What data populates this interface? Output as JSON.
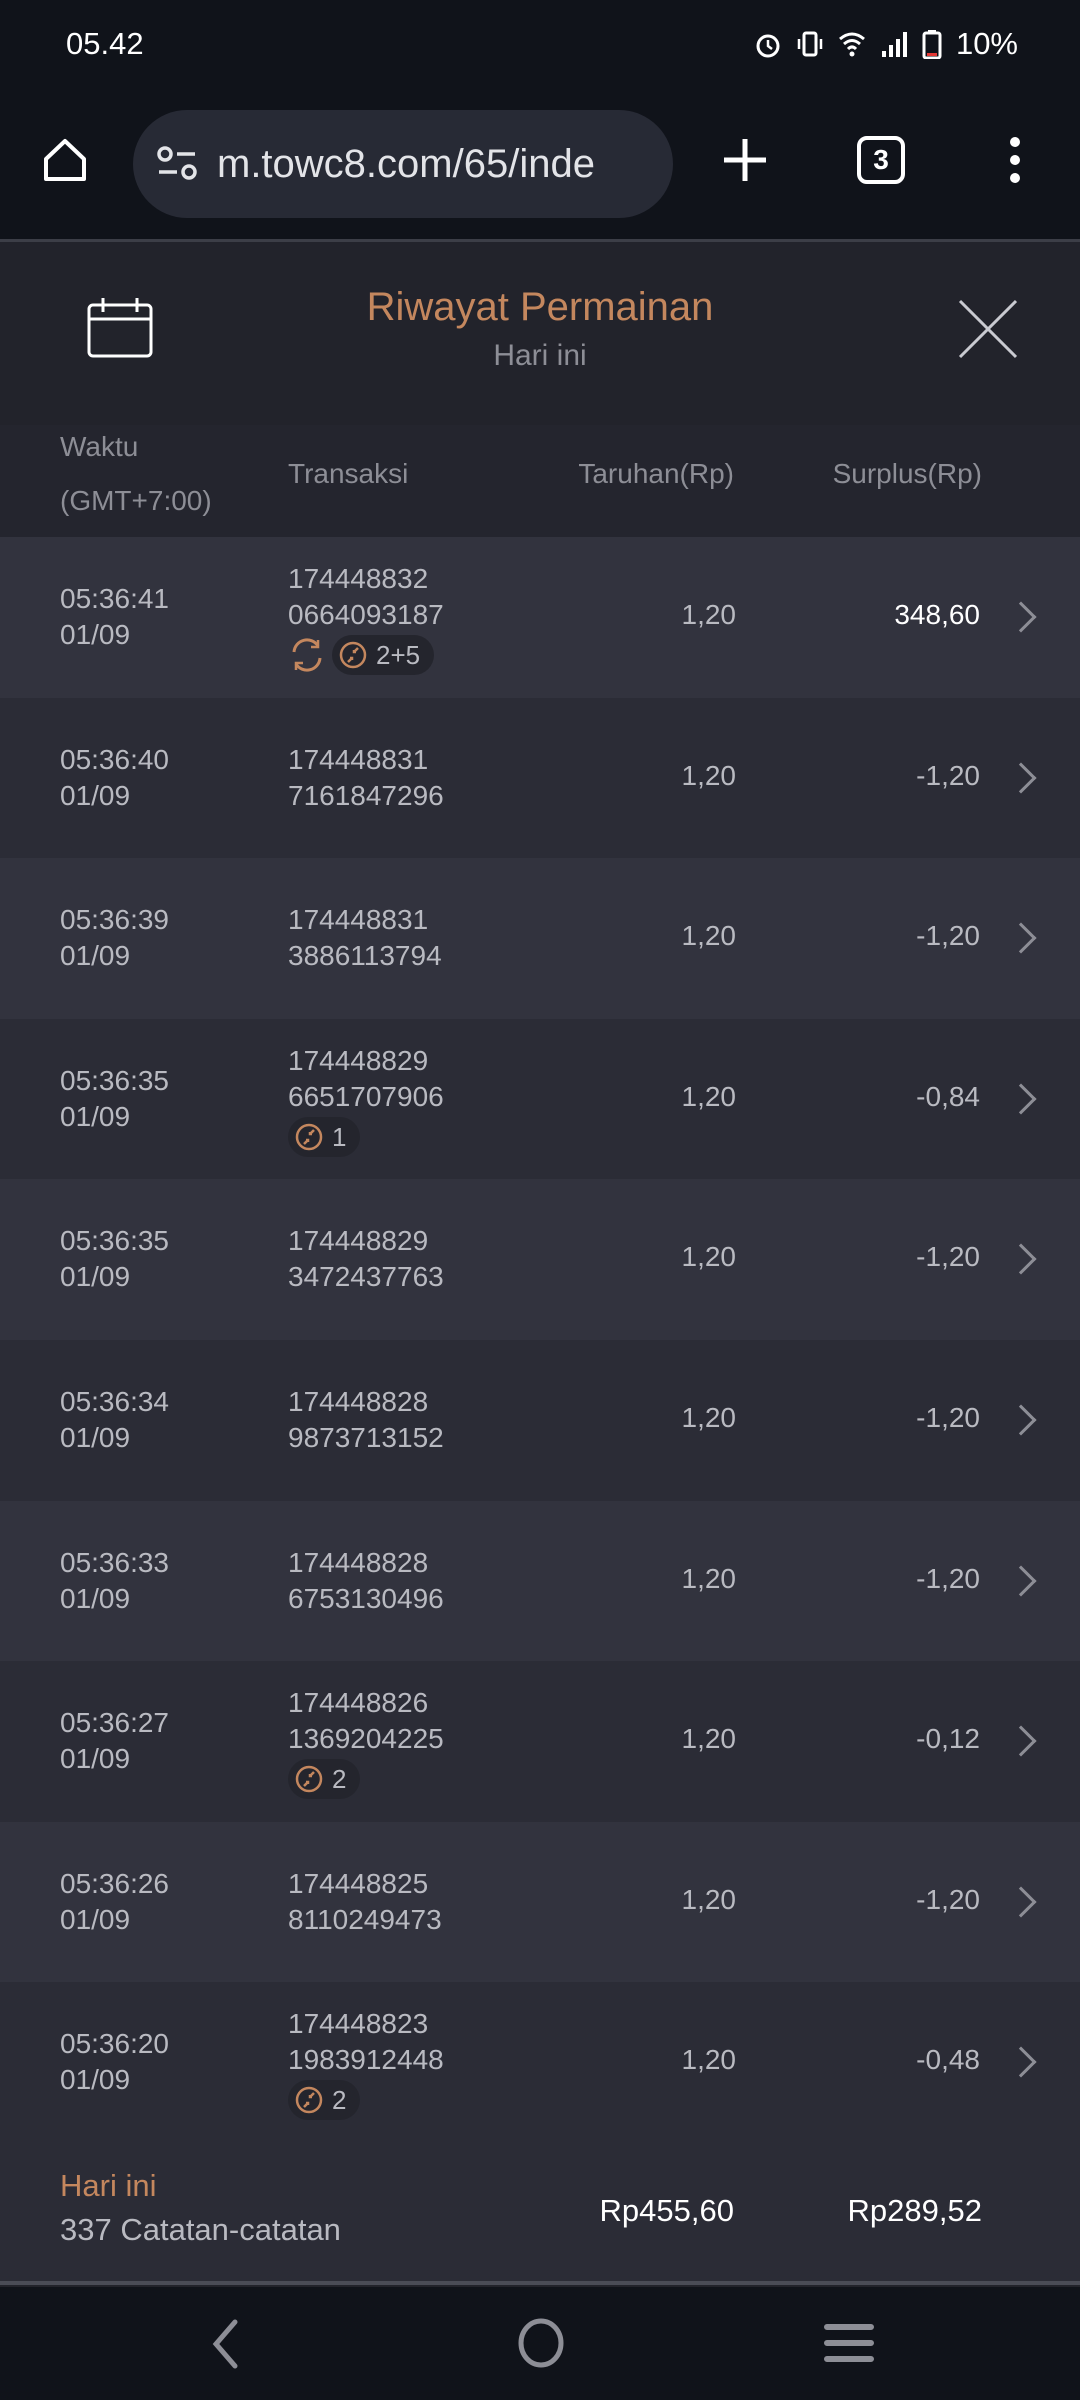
{
  "status_bar": {
    "time": "05.42",
    "battery": "10%"
  },
  "browser": {
    "url": "m.towc8.com/65/inde",
    "tab_count": "3"
  },
  "header": {
    "title": "Riwayat Permainan",
    "subtitle": "Hari ini"
  },
  "columns": {
    "time": "Waktu",
    "timezone": "(GMT+7:00)",
    "transaction": "Transaksi",
    "bet": "Taruhan(Rp)",
    "surplus": "Surplus(Rp)"
  },
  "colors": {
    "accent": "#c4875e",
    "background": "#22232b"
  },
  "rows": [
    {
      "time": "05:36:41",
      "date": "01/09",
      "tx1": "174448832",
      "tx2": "0664093187",
      "bet": "1,20",
      "surplus": "348,60",
      "highlight": true,
      "refresh_icon": true,
      "badge": "2+5"
    },
    {
      "time": "05:36:40",
      "date": "01/09",
      "tx1": "174448831",
      "tx2": "7161847296",
      "bet": "1,20",
      "surplus": "-1,20"
    },
    {
      "time": "05:36:39",
      "date": "01/09",
      "tx1": "174448831",
      "tx2": "3886113794",
      "bet": "1,20",
      "surplus": "-1,20"
    },
    {
      "time": "05:36:35",
      "date": "01/09",
      "tx1": "174448829",
      "tx2": "6651707906",
      "bet": "1,20",
      "surplus": "-0,84",
      "badge": "1"
    },
    {
      "time": "05:36:35",
      "date": "01/09",
      "tx1": "174448829",
      "tx2": "3472437763",
      "bet": "1,20",
      "surplus": "-1,20"
    },
    {
      "time": "05:36:34",
      "date": "01/09",
      "tx1": "174448828",
      "tx2": "9873713152",
      "bet": "1,20",
      "surplus": "-1,20"
    },
    {
      "time": "05:36:33",
      "date": "01/09",
      "tx1": "174448828",
      "tx2": "6753130496",
      "bet": "1,20",
      "surplus": "-1,20"
    },
    {
      "time": "05:36:27",
      "date": "01/09",
      "tx1": "174448826",
      "tx2": "1369204225",
      "bet": "1,20",
      "surplus": "-0,12",
      "badge": "2"
    },
    {
      "time": "05:36:26",
      "date": "01/09",
      "tx1": "174448825",
      "tx2": "8110249473",
      "bet": "1,20",
      "surplus": "-1,20"
    },
    {
      "time": "05:36:20",
      "date": "01/09",
      "tx1": "174448823",
      "tx2": "1983912448",
      "bet": "1,20",
      "surplus": "-0,48",
      "badge": "2"
    }
  ],
  "footer": {
    "period": "Hari ini",
    "count": "337 Catatan-catatan",
    "total_bet": "Rp455,60",
    "total_surplus": "Rp289,52"
  }
}
